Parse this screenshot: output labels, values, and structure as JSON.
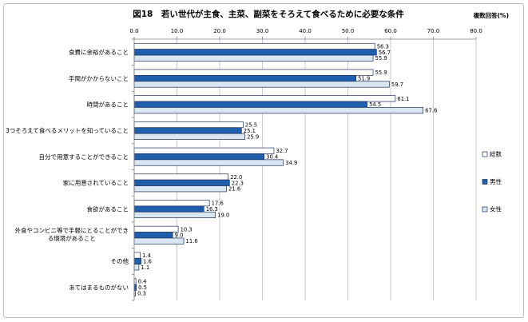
{
  "chart_data": {
    "type": "bar",
    "orientation": "horizontal",
    "title": "図18　若い世代が主食、主菜、副菜をそろえて食べるために必要な条件",
    "note": "複数回答(%)",
    "categories": [
      "食費に余裕があること",
      "手間がかからないこと",
      "時間があること",
      "3つそろえて食べるメリットを知っていること",
      "自分で用意することができること",
      "家に用意されていること",
      "食欲があること",
      "外食やコンビニ等で手軽にとることができる環境があること",
      "その他",
      "あてはまるものがない"
    ],
    "series": [
      {
        "name": "総数",
        "color": "#ffffff",
        "values": [
          56.3,
          55.9,
          61.1,
          25.5,
          32.7,
          22.0,
          17.6,
          10.3,
          1.4,
          0.4
        ]
      },
      {
        "name": "男性",
        "color": "#1f5fad",
        "values": [
          56.7,
          51.9,
          54.5,
          25.1,
          30.4,
          22.3,
          16.3,
          9.0,
          1.6,
          0.5
        ]
      },
      {
        "name": "女性",
        "color": "#dae6f2",
        "values": [
          55.9,
          59.7,
          67.6,
          25.9,
          34.9,
          21.6,
          19.0,
          11.6,
          1.1,
          0.3
        ]
      }
    ],
    "xlim": [
      0,
      80
    ],
    "xticks": [
      "0.0",
      "10.0",
      "20.0",
      "30.0",
      "40.0",
      "50.0",
      "60.0",
      "70.0",
      "80.0"
    ],
    "value_axis_position": "top",
    "grid": true,
    "legend_position": "right",
    "data_labels": true,
    "bar_border_color": "#1f2f5a"
  }
}
